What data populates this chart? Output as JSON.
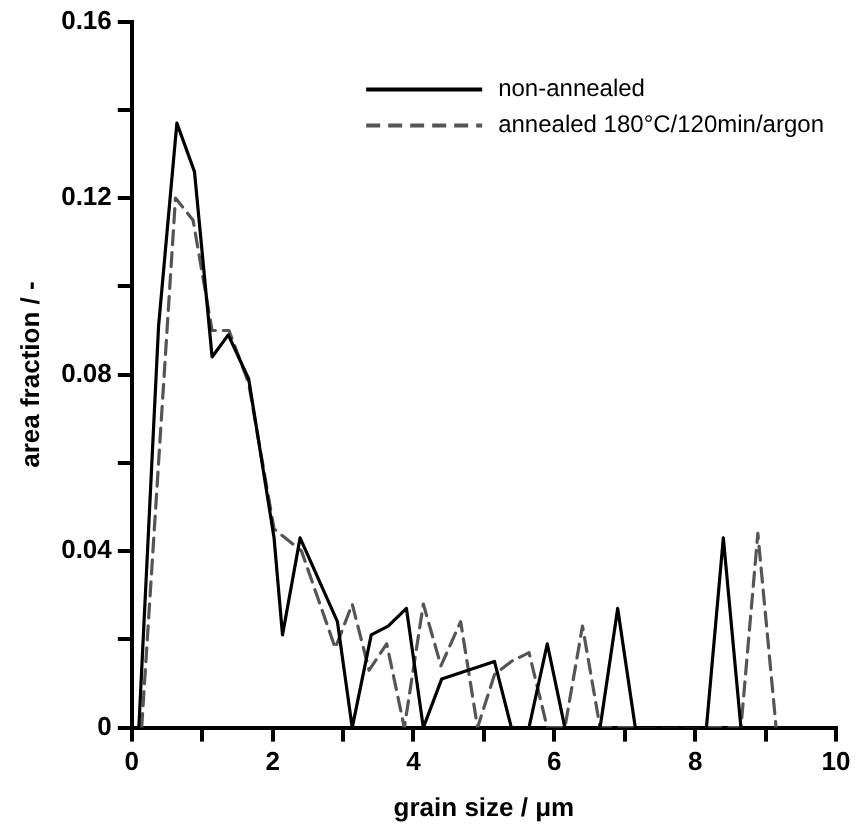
{
  "chart_data": {
    "type": "line",
    "xlabel": "grain size / μm",
    "ylabel": "area fraction / -",
    "xlim": [
      0,
      10
    ],
    "ylim": [
      0,
      0.16
    ],
    "xticks": [
      0,
      {
        "value": 1,
        "label": null
      },
      2,
      {
        "value": 3,
        "label": null
      },
      4,
      {
        "value": 5,
        "label": null
      },
      6,
      {
        "value": 7,
        "label": null
      },
      8,
      {
        "value": 9,
        "label": null
      },
      10
    ],
    "yticks": [
      0,
      {
        "value": 0.02,
        "label": null
      },
      0.04,
      {
        "value": 0.06,
        "label": null
      },
      0.08,
      {
        "value": 0.1,
        "label": null
      },
      0.12,
      {
        "value": 0.14,
        "label": null
      },
      0.16
    ],
    "grid": false,
    "legend": "top right",
    "marker": "none",
    "series": [
      {
        "name": "non-annealed",
        "color": "#000000",
        "line_style": "solid",
        "x": [
          0.1,
          0.38,
          0.64,
          0.89,
          1.14,
          1.37,
          1.66,
          2.02,
          2.14,
          2.39,
          2.92,
          3.13,
          3.4,
          3.64,
          3.9,
          4.14,
          4.4,
          5.15,
          5.39,
          5.64,
          5.9,
          6.15,
          6.65,
          6.9,
          7.15,
          8.16,
          8.4,
          8.65
        ],
        "values": [
          0,
          0.091,
          0.137,
          0.126,
          0.084,
          0.089,
          0.079,
          0.043,
          0.021,
          0.043,
          0.024,
          0,
          0.021,
          0.023,
          0.027,
          0,
          0.011,
          0.015,
          0,
          0,
          0.019,
          0,
          0,
          0.027,
          0,
          0,
          0.043,
          0
        ]
      },
      {
        "name": "annealed 180°C/120min/argon",
        "color": "#555555",
        "line_style": "dashed",
        "x": [
          0.14,
          0.62,
          0.87,
          1.14,
          1.38,
          1.66,
          2.02,
          2.41,
          2.89,
          3.13,
          3.37,
          3.62,
          3.87,
          4.14,
          4.39,
          4.67,
          4.91,
          5.15,
          5.39,
          5.64,
          5.9,
          6.15,
          6.4,
          6.65,
          8.65,
          8.89,
          9.15
        ],
        "values": [
          0,
          0.12,
          0.115,
          0.09,
          0.09,
          0.078,
          0.045,
          0.04,
          0.018,
          0.028,
          0.013,
          0.019,
          0,
          0.028,
          0.014,
          0.024,
          0,
          0.012,
          0.015,
          0.017,
          0,
          0,
          0.023,
          0,
          0,
          0.044,
          0
        ]
      }
    ]
  }
}
